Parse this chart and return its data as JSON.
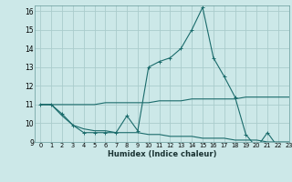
{
  "xlabel": "Humidex (Indice chaleur)",
  "background_color": "#cce8e8",
  "grid_color": "#aacccc",
  "line_color": "#1a6b6b",
  "xlim": [
    -0.5,
    23
  ],
  "ylim": [
    9,
    16.3
  ],
  "xticks": [
    0,
    1,
    2,
    3,
    4,
    5,
    6,
    7,
    8,
    9,
    10,
    11,
    12,
    13,
    14,
    15,
    16,
    17,
    18,
    19,
    20,
    21,
    22,
    23
  ],
  "yticks": [
    9,
    10,
    11,
    12,
    13,
    14,
    15,
    16
  ],
  "series": [
    {
      "x": [
        0,
        1,
        2,
        3,
        4,
        5,
        6,
        7,
        8,
        9,
        10,
        11,
        12,
        13,
        14,
        15,
        16,
        17,
        18,
        19,
        20,
        21,
        22,
        23
      ],
      "y": [
        11.0,
        11.0,
        10.5,
        9.9,
        9.5,
        9.5,
        9.5,
        9.5,
        10.4,
        9.6,
        13.0,
        13.3,
        13.5,
        14.0,
        15.0,
        16.2,
        13.5,
        12.5,
        11.4,
        9.4,
        8.7,
        9.5,
        8.7,
        8.7
      ],
      "marker": "+"
    },
    {
      "x": [
        0,
        1,
        2,
        3,
        4,
        5,
        6,
        7,
        8,
        9,
        10,
        11,
        12,
        13,
        14,
        15,
        16,
        17,
        18,
        19,
        20,
        21,
        22,
        23
      ],
      "y": [
        11.0,
        11.0,
        11.0,
        11.0,
        11.0,
        11.0,
        11.1,
        11.1,
        11.1,
        11.1,
        11.1,
        11.2,
        11.2,
        11.2,
        11.3,
        11.3,
        11.3,
        11.3,
        11.3,
        11.4,
        11.4,
        11.4,
        11.4,
        11.4
      ],
      "marker": null
    },
    {
      "x": [
        0,
        1,
        2,
        3,
        4,
        5,
        6,
        7,
        8,
        9,
        10,
        11,
        12,
        13,
        14,
        15,
        16,
        17,
        18,
        19,
        20,
        21,
        22,
        23
      ],
      "y": [
        11.0,
        11.0,
        10.4,
        9.9,
        9.7,
        9.6,
        9.6,
        9.5,
        9.5,
        9.5,
        9.4,
        9.4,
        9.3,
        9.3,
        9.3,
        9.2,
        9.2,
        9.2,
        9.1,
        9.1,
        9.1,
        9.0,
        9.0,
        9.0
      ],
      "marker": null
    }
  ]
}
